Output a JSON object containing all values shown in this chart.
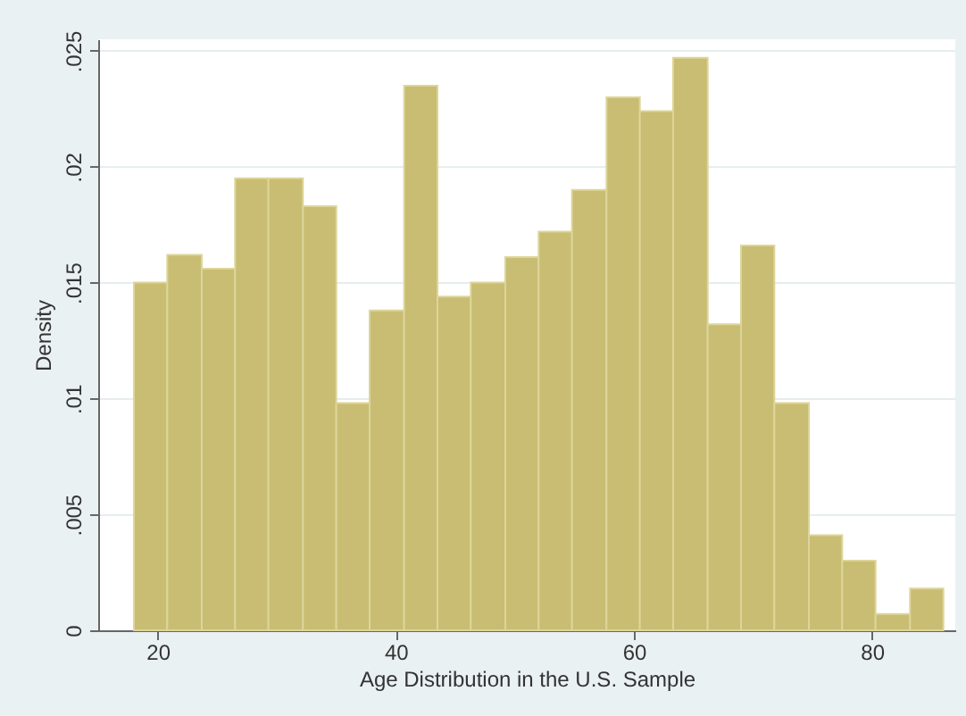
{
  "chart_data": {
    "type": "histogram",
    "xlabel": "Age Distribution in the U.S. Sample",
    "ylabel": "Density",
    "bins": [
      18,
      20.8,
      23.7,
      26.5,
      29.3,
      32.2,
      35,
      37.8,
      40.7,
      43.5,
      46.3,
      49.2,
      52,
      54.8,
      57.7,
      60.5,
      63.3,
      66.2,
      69,
      71.8,
      74.7,
      77.5,
      80.3,
      83.2,
      86
    ],
    "values": [
      0.015,
      0.0162,
      0.0156,
      0.0195,
      0.0195,
      0.0183,
      0.0098,
      0.0138,
      0.0235,
      0.0144,
      0.015,
      0.0161,
      0.0172,
      0.019,
      0.023,
      0.0224,
      0.0247,
      0.0132,
      0.0166,
      0.0098,
      0.0041,
      0.003,
      0.0007,
      0.0018
    ],
    "color": "#c8bd72",
    "xlim": [
      15,
      87
    ],
    "xticks": [
      20,
      40,
      60,
      80
    ],
    "ylim": [
      0,
      0.0255
    ],
    "yticks": [
      {
        "value": 0,
        "label": "0"
      },
      {
        "value": 0.005,
        "label": ".005"
      },
      {
        "value": 0.01,
        "label": ".01"
      },
      {
        "value": 0.015,
        "label": ".015"
      },
      {
        "value": 0.02,
        "label": ".02"
      },
      {
        "value": 0.025,
        "label": ".025"
      }
    ],
    "grid": "y"
  }
}
